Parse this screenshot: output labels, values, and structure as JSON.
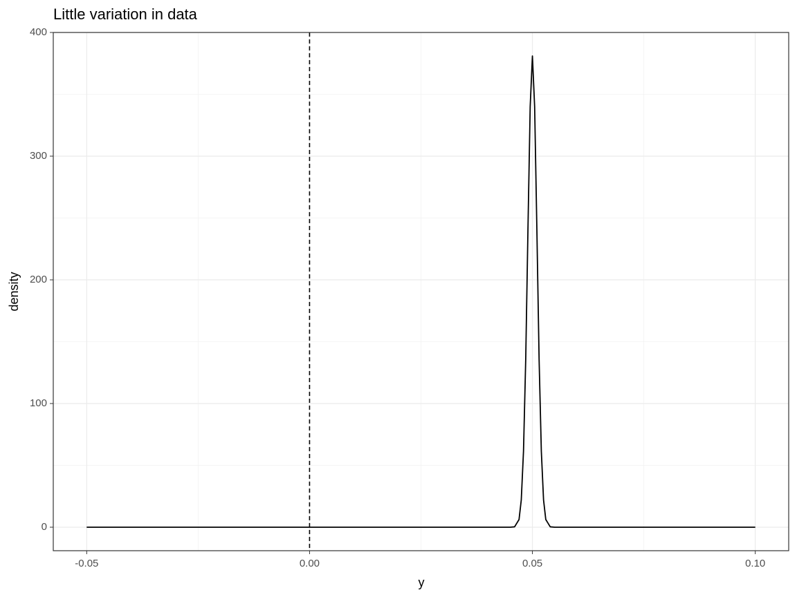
{
  "chart_data": {
    "type": "line",
    "title": "Little variation in data",
    "xlabel": "y",
    "ylabel": "density",
    "x": [
      -0.05,
      0.045,
      0.046,
      0.047,
      0.0475,
      0.048,
      0.0485,
      0.049,
      0.0495,
      0.05,
      0.0505,
      0.051,
      0.0515,
      0.052,
      0.0525,
      0.053,
      0.054,
      0.055,
      0.1
    ],
    "values": [
      0,
      0,
      0.3,
      6.2,
      22,
      61.4,
      136,
      241,
      340,
      381,
      340,
      241,
      136,
      61.4,
      22,
      6.2,
      0.3,
      0,
      0
    ],
    "color": "#000000",
    "vline": 0,
    "xlim": [
      -0.0575,
      0.1075
    ],
    "ylim": [
      -19,
      400
    ],
    "xticks": [
      -0.05,
      {
        "value": 0,
        "label": "0.00"
      },
      0.05,
      {
        "value": 0.1,
        "label": "0.10"
      }
    ],
    "yticks": [
      0,
      100,
      200,
      300,
      400
    ],
    "minor_xticks": [
      -0.025,
      0.025,
      0.075
    ],
    "minor_yticks": [
      50,
      150,
      250,
      350
    ],
    "grid": true
  }
}
